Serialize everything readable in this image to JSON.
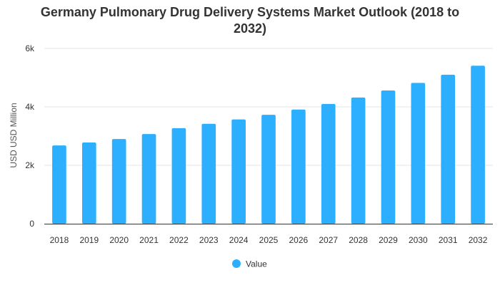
{
  "chart_data": {
    "type": "bar",
    "title_line1": "Germany Pulmonary Drug Delivery Systems Market Outlook (2018 to",
    "title_line2": "2032)",
    "xlabel": "",
    "ylabel": "USD USD Million",
    "ylim": [
      0,
      6000
    ],
    "y_ticks": [
      0,
      2000,
      4000,
      6000
    ],
    "y_tick_labels": [
      "0",
      "2k",
      "4k",
      "6k"
    ],
    "grid": true,
    "legend_position": "bottom",
    "categories": [
      "2018",
      "2019",
      "2020",
      "2021",
      "2022",
      "2023",
      "2024",
      "2025",
      "2026",
      "2027",
      "2028",
      "2029",
      "2030",
      "2031",
      "2032"
    ],
    "series": [
      {
        "name": "Value",
        "color": "#2caffe",
        "values": [
          2680,
          2780,
          2900,
          3070,
          3270,
          3420,
          3570,
          3730,
          3910,
          4100,
          4320,
          4560,
          4820,
          5100,
          5410
        ]
      }
    ]
  }
}
